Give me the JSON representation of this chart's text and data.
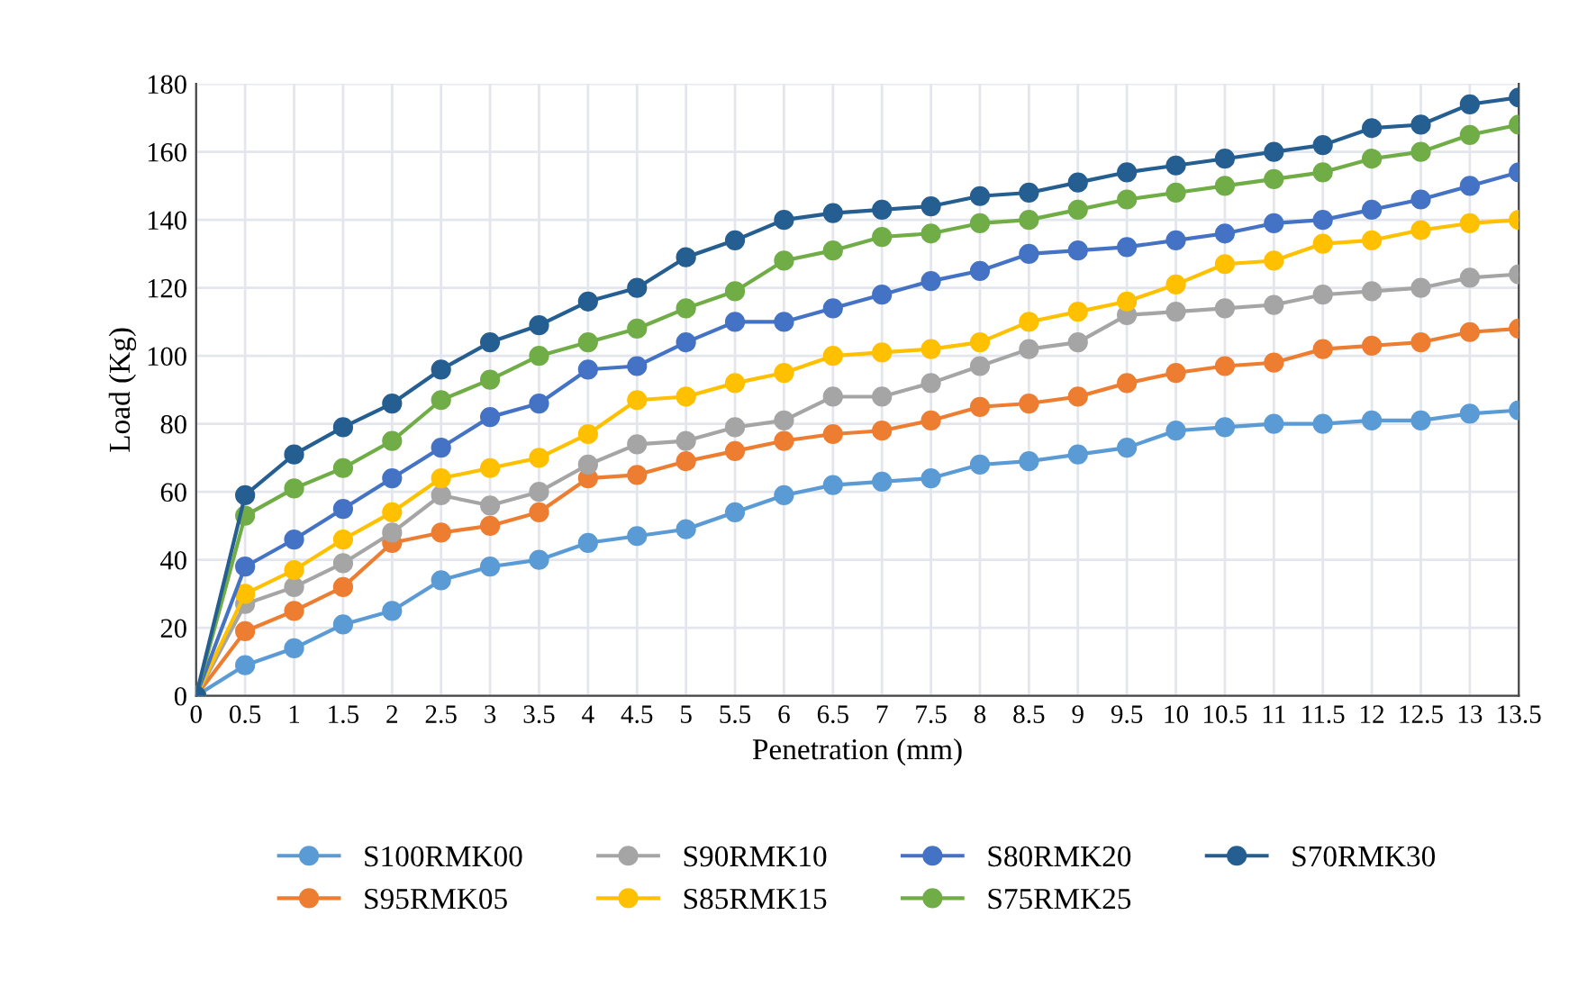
{
  "chart_data": {
    "type": "line",
    "xlabel": "Penetration (mm)",
    "ylabel": "Load (Kg)",
    "categories": [
      "0",
      "0.5",
      "1",
      "1.5",
      "2",
      "2.5",
      "3",
      "3.5",
      "4",
      "4.5",
      "5",
      "5.5",
      "6",
      "6.5",
      "7",
      "7.5",
      "8",
      "8.5",
      "9",
      "9.5",
      "10",
      "10.5",
      "11",
      "11.5",
      "12",
      "12.5",
      "13",
      "13.5"
    ],
    "series": [
      {
        "name": "S100RMK00",
        "color": "#5b9bd5",
        "values": [
          0,
          9,
          14,
          21,
          25,
          34,
          38,
          40,
          45,
          47,
          49,
          54,
          59,
          62,
          63,
          64,
          68,
          69,
          71,
          73,
          78,
          79,
          80,
          80,
          81,
          81,
          83,
          84
        ]
      },
      {
        "name": "S95RMK05",
        "color": "#ed7d31",
        "values": [
          0,
          19,
          25,
          32,
          45,
          48,
          50,
          54,
          64,
          65,
          69,
          72,
          75,
          77,
          78,
          81,
          85,
          86,
          88,
          92,
          95,
          97,
          98,
          102,
          103,
          104,
          107,
          108
        ]
      },
      {
        "name": "S90RMK10",
        "color": "#a5a5a5",
        "values": [
          0,
          27,
          32,
          39,
          48,
          59,
          56,
          60,
          68,
          74,
          75,
          79,
          81,
          88,
          88,
          92,
          97,
          102,
          104,
          112,
          113,
          114,
          115,
          118,
          119,
          120,
          123,
          124
        ]
      },
      {
        "name": "S85RMK15",
        "color": "#ffc000",
        "values": [
          0,
          30,
          37,
          46,
          54,
          64,
          67,
          70,
          77,
          87,
          88,
          92,
          95,
          100,
          101,
          102,
          104,
          110,
          113,
          116,
          121,
          127,
          128,
          133,
          134,
          137,
          139,
          140
        ]
      },
      {
        "name": "S80RMK20",
        "color": "#4472c4",
        "values": [
          0,
          38,
          46,
          55,
          64,
          73,
          82,
          86,
          96,
          97,
          104,
          110,
          110,
          114,
          118,
          122,
          125,
          130,
          131,
          132,
          134,
          136,
          139,
          140,
          143,
          146,
          150,
          154
        ]
      },
      {
        "name": "S75RMK25",
        "color": "#70ad47",
        "values": [
          0,
          53,
          61,
          67,
          75,
          87,
          93,
          100,
          104,
          108,
          114,
          119,
          128,
          131,
          135,
          136,
          139,
          140,
          143,
          146,
          148,
          150,
          152,
          154,
          158,
          160,
          165,
          168
        ]
      },
      {
        "name": "S70RMK30",
        "color": "#255e91",
        "values": [
          0,
          59,
          71,
          79,
          86,
          96,
          104,
          109,
          116,
          120,
          129,
          134,
          140,
          142,
          143,
          144,
          147,
          148,
          151,
          154,
          156,
          158,
          160,
          162,
          167,
          168,
          174,
          176
        ]
      }
    ],
    "ylim": [
      0,
      180
    ],
    "yticks": [
      0,
      20,
      40,
      60,
      80,
      100,
      120,
      140,
      160,
      180
    ],
    "grid": true,
    "legend": "bottom",
    "marker": "circle",
    "line_style": "solid"
  }
}
